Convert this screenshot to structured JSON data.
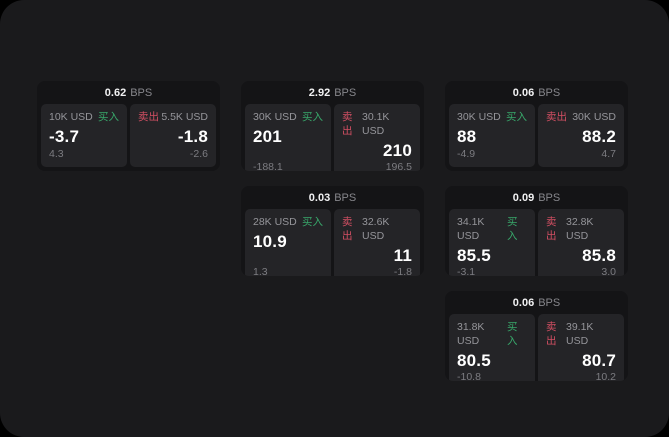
{
  "labels": {
    "buy": "买入",
    "sell": "卖出",
    "bps_unit": "BPS"
  },
  "colors": {
    "page_bg": "#000000",
    "window_bg": "#1a1a1c",
    "card_bg": "#141416",
    "panel_bg": "#242427",
    "buy_green": "#38a86b",
    "sell_red": "#d24f63",
    "value_white": "#ffffff",
    "label_gray": "#95959a"
  },
  "cards": [
    {
      "row": 1,
      "col": 1,
      "bps": "0.62",
      "buy": {
        "amount": "10K USD",
        "value": "-3.7",
        "sub": "4.3"
      },
      "sell": {
        "amount": "5.5K USD",
        "value": "-1.8",
        "sub": "-2.6"
      }
    },
    {
      "row": 1,
      "col": 2,
      "bps": "2.92",
      "buy": {
        "amount": "30K USD",
        "value": "201",
        "sub": "-188.1"
      },
      "sell": {
        "amount": "30.1K USD",
        "value": "210",
        "sub": "196.5"
      }
    },
    {
      "row": 1,
      "col": 3,
      "bps": "0.06",
      "buy": {
        "amount": "30K USD",
        "value": "88",
        "sub": "-4.9"
      },
      "sell": {
        "amount": "30K USD",
        "value": "88.2",
        "sub": "4.7"
      }
    },
    {
      "row": 2,
      "col": 2,
      "bps": "0.03",
      "buy": {
        "amount": "28K USD",
        "value": "10.9",
        "sub": "1.3"
      },
      "sell": {
        "amount": "32.6K USD",
        "value": "11",
        "sub": "-1.8"
      }
    },
    {
      "row": 2,
      "col": 3,
      "bps": "0.09",
      "buy": {
        "amount": "34.1K USD",
        "value": "85.5",
        "sub": "-3.1"
      },
      "sell": {
        "amount": "32.8K USD",
        "value": "85.8",
        "sub": "3.0"
      }
    },
    {
      "row": 3,
      "col": 3,
      "bps": "0.06",
      "buy": {
        "amount": "31.8K USD",
        "value": "80.5",
        "sub": "-10.8"
      },
      "sell": {
        "amount": "39.1K USD",
        "value": "80.7",
        "sub": "10.2"
      }
    }
  ]
}
